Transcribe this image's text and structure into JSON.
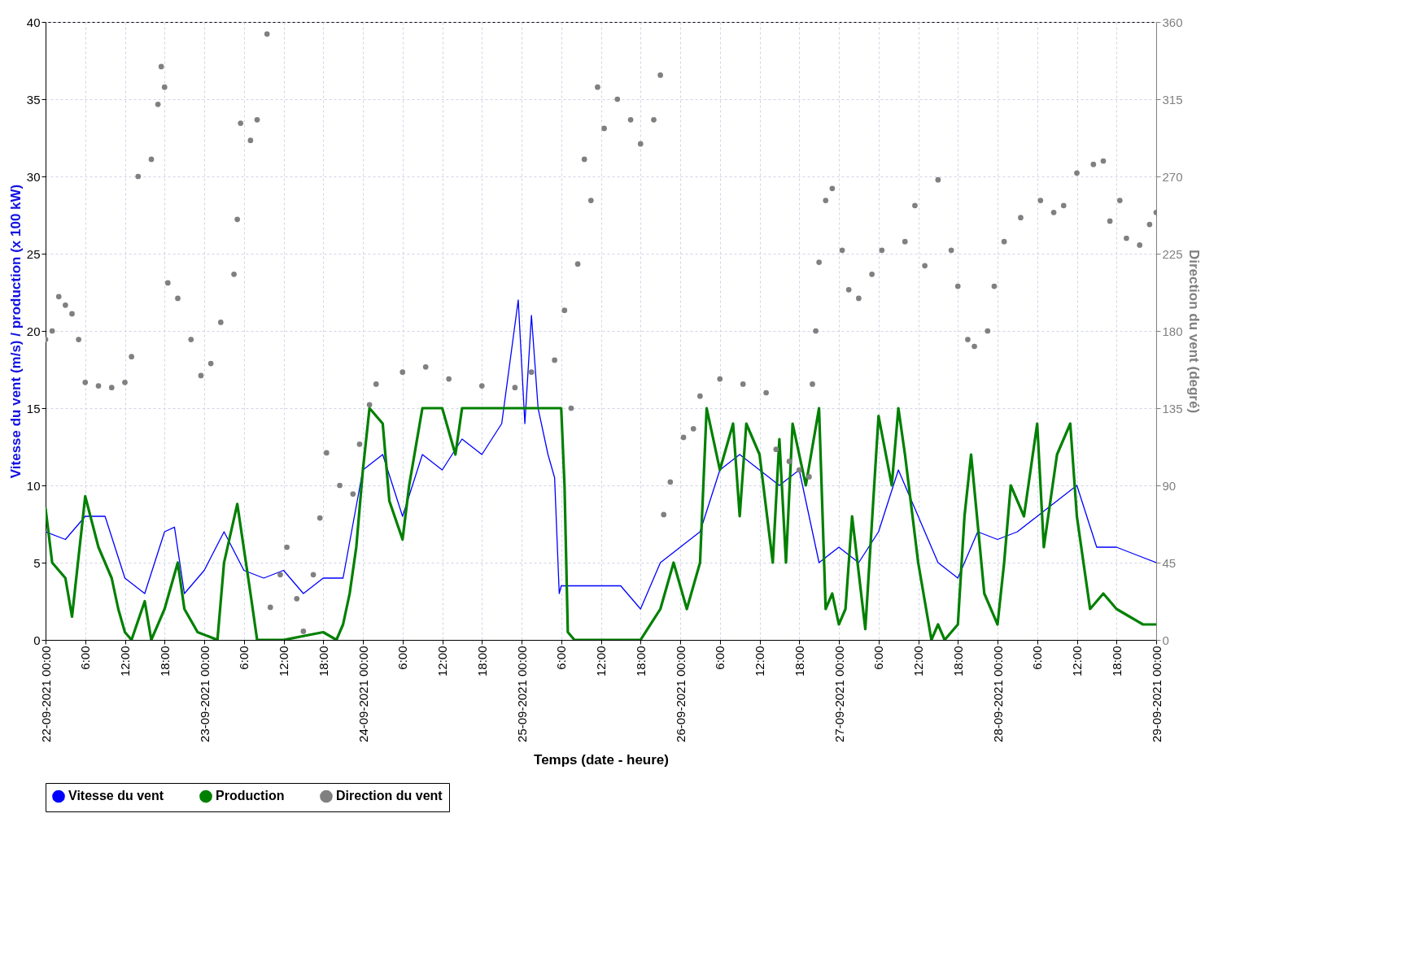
{
  "chart_data": {
    "type": "line",
    "xlabel": "Temps (date - heure)",
    "ylabel": "Vitesse du vent (m/s) / production (x 100 kW)",
    "y2label": "Direction du vent (degré)",
    "xlim": [
      "2021-09-22T00:00",
      "2021-09-29T00:00"
    ],
    "xticks": [
      {
        "value": "2021-09-22T00:00",
        "label": "22-09-2021 00:00"
      },
      {
        "value": "2021-09-22T06:00",
        "label": "6:00"
      },
      {
        "value": "2021-09-22T12:00",
        "label": "12:00"
      },
      {
        "value": "2021-09-22T18:00",
        "label": "18:00"
      },
      {
        "value": "2021-09-23T00:00",
        "label": "23-09-2021 00:00"
      },
      {
        "value": "2021-09-23T06:00",
        "label": "6:00"
      },
      {
        "value": "2021-09-23T12:00",
        "label": "12:00"
      },
      {
        "value": "2021-09-23T18:00",
        "label": "18:00"
      },
      {
        "value": "2021-09-24T00:00",
        "label": "24-09-2021 00:00"
      },
      {
        "value": "2021-09-24T06:00",
        "label": "6:00"
      },
      {
        "value": "2021-09-24T12:00",
        "label": "12:00"
      },
      {
        "value": "2021-09-24T18:00",
        "label": "18:00"
      },
      {
        "value": "2021-09-25T00:00",
        "label": "25-09-2021 00:00"
      },
      {
        "value": "2021-09-25T06:00",
        "label": "6:00"
      },
      {
        "value": "2021-09-25T12:00",
        "label": "12:00"
      },
      {
        "value": "2021-09-25T18:00",
        "label": "18:00"
      },
      {
        "value": "2021-09-26T00:00",
        "label": "26-09-2021 00:00"
      },
      {
        "value": "2021-09-26T06:00",
        "label": "6:00"
      },
      {
        "value": "2021-09-26T12:00",
        "label": "12:00"
      },
      {
        "value": "2021-09-26T18:00",
        "label": "18:00"
      },
      {
        "value": "2021-09-27T00:00",
        "label": "27-09-2021 00:00"
      },
      {
        "value": "2021-09-27T06:00",
        "label": "6:00"
      },
      {
        "value": "2021-09-27T12:00",
        "label": "12:00"
      },
      {
        "value": "2021-09-27T18:00",
        "label": "18:00"
      },
      {
        "value": "2021-09-28T00:00",
        "label": "28-09-2021 00:00"
      },
      {
        "value": "2021-09-28T06:00",
        "label": "6:00"
      },
      {
        "value": "2021-09-28T12:00",
        "label": "12:00"
      },
      {
        "value": "2021-09-28T18:00",
        "label": "18:00"
      },
      {
        "value": "2021-09-29T00:00",
        "label": "29-09-2021 00:00"
      }
    ],
    "ylim": [
      0,
      40
    ],
    "yticks": [
      0,
      5,
      10,
      15,
      20,
      25,
      30,
      35,
      40
    ],
    "y2lim": [
      0,
      360
    ],
    "y2ticks": [
      0,
      45,
      90,
      135,
      180,
      225,
      270,
      315,
      360
    ],
    "grid": true,
    "legend": "bottom",
    "series": [
      {
        "name": "Vitesse du vent",
        "color": "#0000ff",
        "x": [
          "2021-09-22T00:00",
          "2021-09-22T03:00",
          "2021-09-22T06:00",
          "2021-09-22T09:00",
          "2021-09-22T12:00",
          "2021-09-22T15:00",
          "2021-09-22T18:00",
          "2021-09-22T19:30",
          "2021-09-22T21:00",
          "2021-09-23T00:00",
          "2021-09-23T03:00",
          "2021-09-23T06:00",
          "2021-09-23T09:00",
          "2021-09-23T12:00",
          "2021-09-23T15:00",
          "2021-09-23T18:00",
          "2021-09-23T21:00",
          "2021-09-24T00:00",
          "2021-09-24T03:00",
          "2021-09-24T06:00",
          "2021-09-24T09:00",
          "2021-09-24T12:00",
          "2021-09-24T15:00",
          "2021-09-24T18:00",
          "2021-09-24T21:00",
          "2021-09-24T23:30",
          "2021-09-25T00:30",
          "2021-09-25T01:30",
          "2021-09-25T02:30",
          "2021-09-25T04:00",
          "2021-09-25T05:00",
          "2021-09-25T05:42",
          "2021-09-25T06:00",
          "2021-09-25T09:00",
          "2021-09-25T12:00",
          "2021-09-25T15:00",
          "2021-09-25T18:00",
          "2021-09-25T21:00",
          "2021-09-26T00:00",
          "2021-09-26T03:00",
          "2021-09-26T06:00",
          "2021-09-26T09:00",
          "2021-09-26T12:00",
          "2021-09-26T15:00",
          "2021-09-26T18:00",
          "2021-09-26T21:00",
          "2021-09-27T00:00",
          "2021-09-27T03:00",
          "2021-09-27T06:00",
          "2021-09-27T09:00",
          "2021-09-27T12:00",
          "2021-09-27T15:00",
          "2021-09-27T18:00",
          "2021-09-27T21:00",
          "2021-09-28T00:00",
          "2021-09-28T03:00",
          "2021-09-28T06:00",
          "2021-09-28T09:00",
          "2021-09-28T12:00",
          "2021-09-28T15:00",
          "2021-09-28T18:00",
          "2021-09-28T21:00",
          "2021-09-29T00:00"
        ],
        "values": [
          7,
          6.5,
          8,
          8,
          4,
          3,
          7,
          7.3,
          3,
          4.5,
          7,
          4.5,
          4,
          4.5,
          3,
          4,
          4,
          11,
          12,
          8,
          12,
          11,
          13,
          12,
          14,
          22,
          14,
          21,
          15,
          12,
          10.5,
          3,
          3.5,
          3.5,
          3.5,
          3.5,
          2,
          5,
          6,
          7,
          11,
          12,
          11,
          10,
          11,
          5,
          6,
          5,
          7,
          11,
          8,
          5,
          4,
          7,
          6.5,
          7,
          8,
          9,
          10,
          6,
          6,
          5.5,
          5
        ]
      },
      {
        "name": "Production",
        "color": "#008000",
        "x": [
          "2021-09-22T00:00",
          "2021-09-22T01:00",
          "2021-09-22T03:00",
          "2021-09-22T04:00",
          "2021-09-22T06:00",
          "2021-09-22T08:00",
          "2021-09-22T10:00",
          "2021-09-22T11:00",
          "2021-09-22T12:00",
          "2021-09-22T13:00",
          "2021-09-22T15:00",
          "2021-09-22T16:00",
          "2021-09-22T18:00",
          "2021-09-22T20:00",
          "2021-09-22T21:00",
          "2021-09-22T23:00",
          "2021-09-23T02:00",
          "2021-09-23T03:00",
          "2021-09-23T05:00",
          "2021-09-23T07:00",
          "2021-09-23T08:00",
          "2021-09-23T12:00",
          "2021-09-23T18:00",
          "2021-09-23T20:00",
          "2021-09-23T21:00",
          "2021-09-23T22:00",
          "2021-09-23T23:00",
          "2021-09-24T00:00",
          "2021-09-24T01:00",
          "2021-09-24T03:00",
          "2021-09-24T04:00",
          "2021-09-24T06:00",
          "2021-09-24T07:00",
          "2021-09-24T09:00",
          "2021-09-24T12:00",
          "2021-09-24T14:00",
          "2021-09-24T15:00",
          "2021-09-25T06:00",
          "2021-09-25T06:30",
          "2021-09-25T07:00",
          "2021-09-25T08:00",
          "2021-09-25T18:00",
          "2021-09-25T21:00",
          "2021-09-25T23:00",
          "2021-09-26T01:00",
          "2021-09-26T03:00",
          "2021-09-26T04:00",
          "2021-09-26T06:00",
          "2021-09-26T08:00",
          "2021-09-26T09:00",
          "2021-09-26T10:00",
          "2021-09-26T12:00",
          "2021-09-26T14:00",
          "2021-09-26T15:00",
          "2021-09-26T16:00",
          "2021-09-26T17:00",
          "2021-09-26T19:00",
          "2021-09-26T21:00",
          "2021-09-26T22:00",
          "2021-09-26T23:00",
          "2021-09-27T00:00",
          "2021-09-27T01:00",
          "2021-09-27T02:00",
          "2021-09-27T04:00",
          "2021-09-27T06:00",
          "2021-09-27T08:00",
          "2021-09-27T09:00",
          "2021-09-27T10:00",
          "2021-09-27T12:00",
          "2021-09-27T14:00",
          "2021-09-27T15:00",
          "2021-09-27T16:00",
          "2021-09-27T18:00",
          "2021-09-27T19:00",
          "2021-09-27T20:00",
          "2021-09-27T22:00",
          "2021-09-28T00:00",
          "2021-09-28T01:00",
          "2021-09-28T02:00",
          "2021-09-28T04:00",
          "2021-09-28T06:00",
          "2021-09-28T07:00",
          "2021-09-28T09:00",
          "2021-09-28T11:00",
          "2021-09-28T12:00",
          "2021-09-28T14:00",
          "2021-09-28T16:00",
          "2021-09-28T18:00",
          "2021-09-28T20:00",
          "2021-09-28T22:00",
          "2021-09-29T00:00"
        ],
        "values": [
          8.5,
          5,
          4,
          1.5,
          9.3,
          6,
          4,
          2,
          0.5,
          0,
          2.5,
          0,
          2,
          5,
          2,
          0.5,
          0,
          5,
          8.8,
          3,
          0,
          0,
          0.5,
          0,
          1,
          3,
          6,
          11,
          15,
          14,
          9,
          6.5,
          10,
          15,
          15,
          12,
          15,
          15,
          10,
          0.5,
          0,
          0,
          2,
          5,
          2,
          5,
          15,
          11,
          14,
          8,
          14,
          12,
          5,
          13,
          5,
          14,
          10,
          15,
          2,
          3,
          1,
          2,
          8,
          0.7,
          14.5,
          10,
          15,
          12,
          5,
          0,
          1,
          0,
          1,
          8,
          12,
          3,
          1,
          5,
          10,
          8,
          14,
          6,
          12,
          14,
          8,
          2,
          3,
          2,
          1.5,
          1,
          1
        ]
      },
      {
        "name": "Direction du vent",
        "color": "#808080",
        "type": "scatter",
        "axis": "y2",
        "marker": "circle",
        "x": [
          "2021-09-22T00:00",
          "2021-09-22T01:00",
          "2021-09-22T02:00",
          "2021-09-22T03:00",
          "2021-09-22T04:00",
          "2021-09-22T05:00",
          "2021-09-22T06:00",
          "2021-09-22T08:00",
          "2021-09-22T10:00",
          "2021-09-22T12:00",
          "2021-09-22T13:00",
          "2021-09-22T14:00",
          "2021-09-22T16:00",
          "2021-09-22T17:00",
          "2021-09-22T17:30",
          "2021-09-22T18:00",
          "2021-09-22T18:30",
          "2021-09-22T20:00",
          "2021-09-22T22:00",
          "2021-09-22T23:30",
          "2021-09-23T01:00",
          "2021-09-23T02:30",
          "2021-09-23T04:30",
          "2021-09-23T05:00",
          "2021-09-23T05:30",
          "2021-09-23T07:00",
          "2021-09-23T08:00",
          "2021-09-23T09:30",
          "2021-09-23T10:00",
          "2021-09-23T11:30",
          "2021-09-23T12:30",
          "2021-09-23T14:00",
          "2021-09-23T15:00",
          "2021-09-23T16:30",
          "2021-09-23T17:30",
          "2021-09-23T18:30",
          "2021-09-23T20:30",
          "2021-09-23T22:30",
          "2021-09-23T23:30",
          "2021-09-24T01:00",
          "2021-09-24T02:00",
          "2021-09-24T06:00",
          "2021-09-24T09:30",
          "2021-09-24T13:00",
          "2021-09-24T18:00",
          "2021-09-24T23:00",
          "2021-09-25T01:30",
          "2021-09-25T05:00",
          "2021-09-25T06:30",
          "2021-09-25T07:30",
          "2021-09-25T08:30",
          "2021-09-25T09:30",
          "2021-09-25T10:30",
          "2021-09-25T11:30",
          "2021-09-25T12:30",
          "2021-09-25T14:30",
          "2021-09-25T16:30",
          "2021-09-25T18:00",
          "2021-09-25T20:00",
          "2021-09-25T21:00",
          "2021-09-25T21:30",
          "2021-09-25T22:30",
          "2021-09-26T00:30",
          "2021-09-26T02:00",
          "2021-09-26T03:00",
          "2021-09-26T06:00",
          "2021-09-26T09:30",
          "2021-09-26T13:00",
          "2021-09-26T14:30",
          "2021-09-26T16:30",
          "2021-09-26T18:00",
          "2021-09-26T19:30",
          "2021-09-26T20:00",
          "2021-09-26T20:30",
          "2021-09-26T21:00",
          "2021-09-26T22:00",
          "2021-09-26T23:00",
          "2021-09-27T00:30",
          "2021-09-27T01:30",
          "2021-09-27T03:00",
          "2021-09-27T05:00",
          "2021-09-27T06:30",
          "2021-09-27T10:00",
          "2021-09-27T11:30",
          "2021-09-27T13:00",
          "2021-09-27T15:00",
          "2021-09-27T17:00",
          "2021-09-27T18:00",
          "2021-09-27T19:30",
          "2021-09-27T20:30",
          "2021-09-27T22:30",
          "2021-09-27T23:30",
          "2021-09-28T01:00",
          "2021-09-28T03:30",
          "2021-09-28T06:30",
          "2021-09-28T08:30",
          "2021-09-28T10:00",
          "2021-09-28T12:00",
          "2021-09-28T14:30",
          "2021-09-28T16:00",
          "2021-09-28T17:00",
          "2021-09-28T18:30",
          "2021-09-28T19:30",
          "2021-09-28T21:30",
          "2021-09-28T23:00",
          "2021-09-29T00:00"
        ],
        "values": [
          175,
          180,
          200,
          195,
          190,
          175,
          150,
          148,
          147,
          150,
          165,
          270,
          280,
          312,
          334,
          322,
          208,
          199,
          175,
          154,
          161,
          185,
          213,
          245,
          301,
          291,
          303,
          353,
          19,
          38,
          54,
          24,
          5,
          38,
          71,
          109,
          90,
          85,
          114,
          137,
          149,
          156,
          159,
          152,
          148,
          147,
          156,
          163,
          192,
          135,
          219,
          280,
          256,
          322,
          298,
          315,
          303,
          289,
          303,
          329,
          73,
          92,
          118,
          123,
          142,
          152,
          149,
          144,
          111,
          104,
          99,
          95,
          149,
          180,
          220,
          256,
          263,
          227,
          204,
          199,
          213,
          227,
          232,
          253,
          218,
          268,
          227,
          206,
          175,
          171,
          180,
          206,
          232,
          246,
          256,
          249,
          253,
          272,
          277,
          279,
          244,
          256,
          234,
          230,
          242,
          249
        ]
      }
    ]
  }
}
